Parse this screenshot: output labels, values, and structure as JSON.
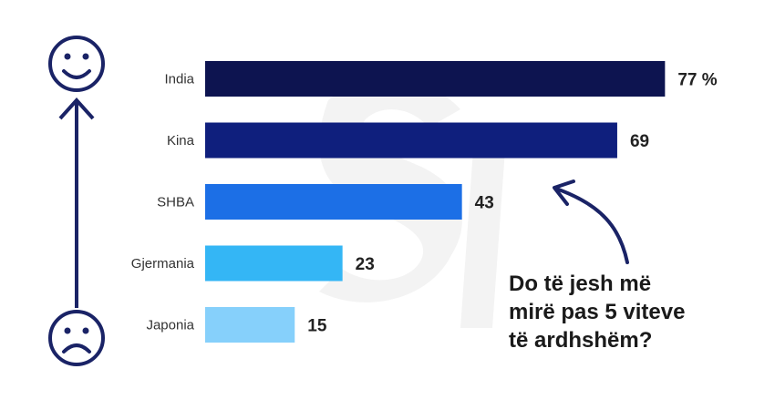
{
  "chart_data": {
    "type": "bar",
    "orientation": "horizontal",
    "categories": [
      "India",
      "Kina",
      "SHBA",
      "Gjermania",
      "Japonia"
    ],
    "values": [
      77,
      69,
      43,
      23,
      15
    ],
    "value_labels": [
      "77 %",
      "69",
      "43",
      "23",
      "15"
    ],
    "xlim": [
      0,
      100
    ],
    "grid": false,
    "bar_colors": [
      "#0d1450",
      "#0f1f7d",
      "#1c6fe6",
      "#34b6f5",
      "#86d0fb"
    ]
  },
  "annotation": {
    "question_lines": [
      "Do të jesh më",
      "mirë pas 5 viteve",
      "të ardhshëm?"
    ]
  },
  "icons": {
    "top": "happy-face-icon",
    "bottom": "sad-face-icon",
    "axis": "up-arrow-icon",
    "pointer": "curved-arrow-icon"
  },
  "colors": {
    "icon_stroke": "#1a2366",
    "watermark": "#f2f2f2"
  }
}
